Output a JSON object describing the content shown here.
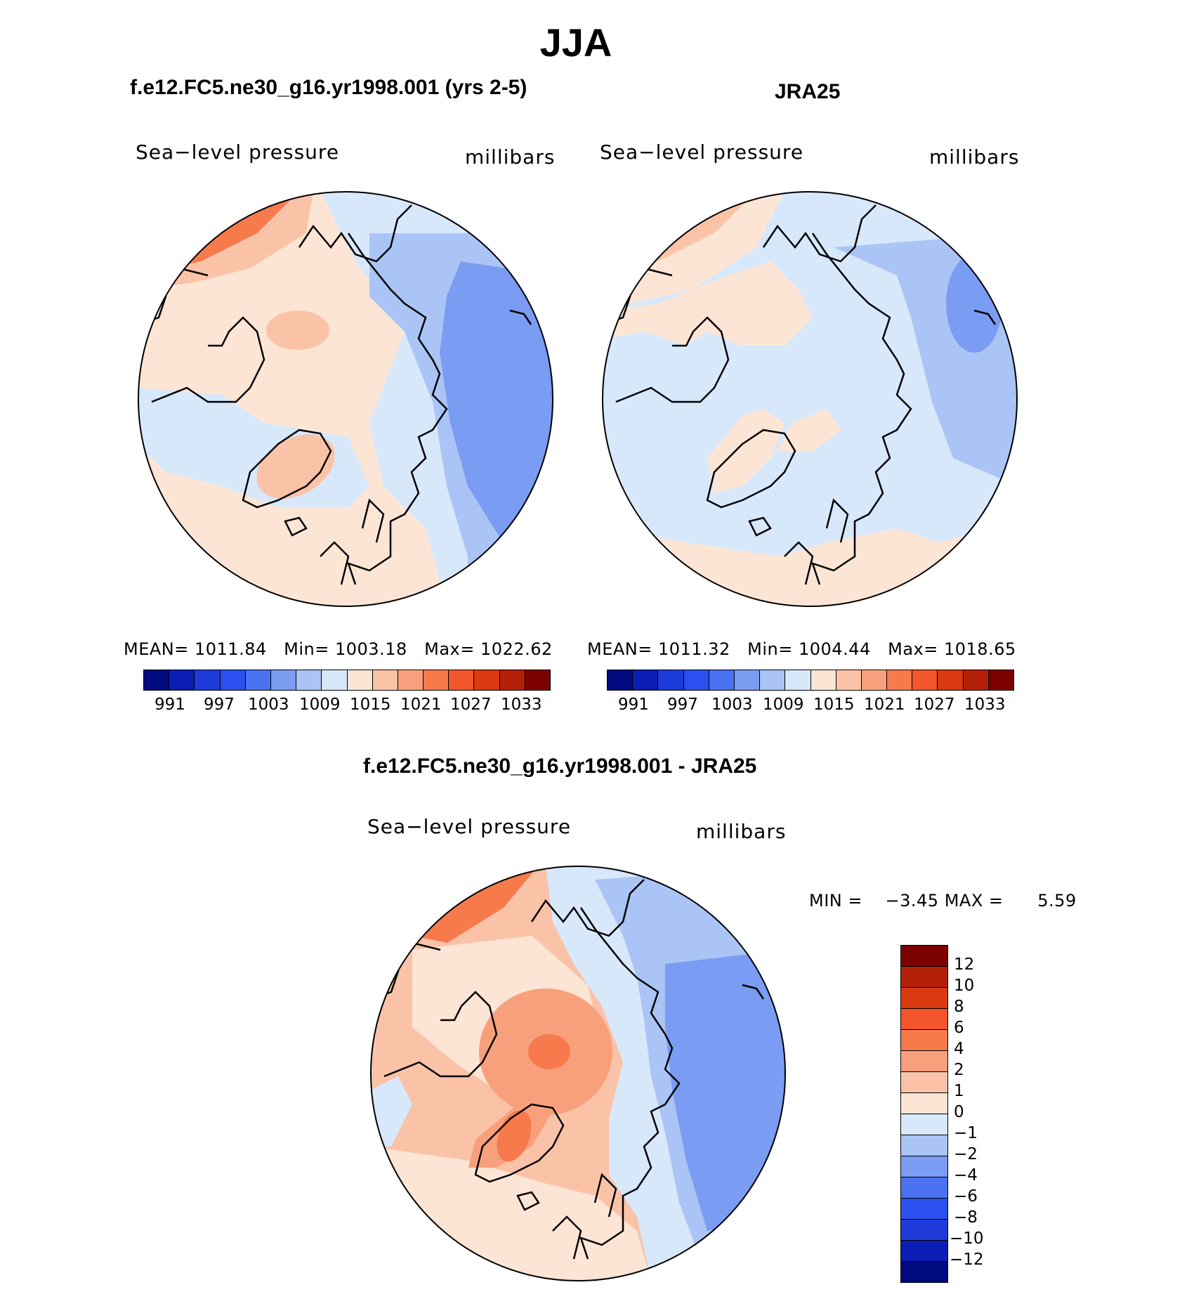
{
  "header": {
    "title": "JJA"
  },
  "panels": [
    {
      "subtitle": "f.e12.FC5.ne30_g16.yr1998.001 (yrs 2-5)",
      "variable": "Sea−level pressure",
      "units": "millibars",
      "stats": {
        "mean_label": "MEAN=",
        "mean": "1011.84",
        "min_label": "Min=",
        "min": "1003.18",
        "max_label": "Max=",
        "max": "1022.62"
      }
    },
    {
      "subtitle": "JRA25",
      "variable": "Sea−level pressure",
      "units": "millibars",
      "stats": {
        "mean_label": "MEAN=",
        "mean": "1011.32",
        "min_label": "Min=",
        "min": "1004.44",
        "max_label": "Max=",
        "max": "1018.65"
      }
    }
  ],
  "abs_colorbar": {
    "colors": [
      "#000a80",
      "#0a1eb4",
      "#1e3ad8",
      "#2a50f0",
      "#4a72f0",
      "#7a9cf2",
      "#aac4f6",
      "#d8e8fb",
      "#fde5d5",
      "#fac3a8",
      "#f8a07c",
      "#f67a4c",
      "#f2562a",
      "#db3a10",
      "#b42008",
      "#7d0000"
    ],
    "ticks": [
      "991",
      "997",
      "1003",
      "1009",
      "1015",
      "1021",
      "1027",
      "1033"
    ]
  },
  "diff_panel": {
    "subtitle": "f.e12.FC5.ne30_g16.yr1998.001 - JRA25",
    "variable": "Sea−level pressure",
    "units": "millibars",
    "min_label": "MIN =",
    "min": "−3.45",
    "max_label": "MAX =",
    "max": "5.59"
  },
  "diff_colorbar": {
    "colors": [
      "#7d0000",
      "#b42008",
      "#db3a10",
      "#f2562a",
      "#f67a4c",
      "#f8a07c",
      "#fac3a8",
      "#fde5d5",
      "#d8e8fb",
      "#aac4f6",
      "#7a9cf2",
      "#4a72f0",
      "#2a50f0",
      "#1e3ad8",
      "#0a1eb4",
      "#000a80"
    ],
    "ticks": [
      "12",
      "10",
      "8",
      "6",
      "4",
      "2",
      "1",
      "0",
      "−1",
      "−2",
      "−4",
      "−6",
      "−8",
      "−10",
      "−12"
    ]
  }
}
